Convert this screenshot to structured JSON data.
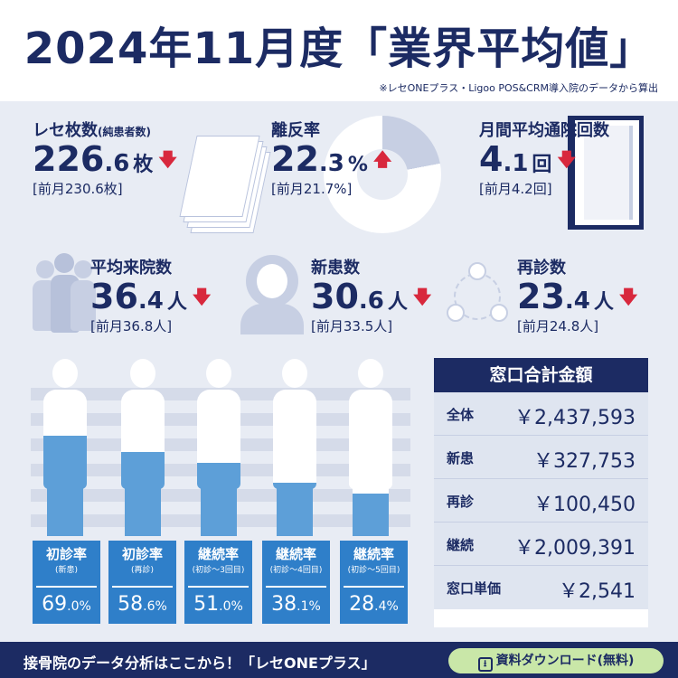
{
  "header": {
    "title_main": "2024年11月度",
    "title_bracket_open": "「",
    "title_emphasis": "業界平均値",
    "title_bracket_close": "」",
    "source_note": "※レセONEプラス・Ligoo POS&CRM導入院のデータから算出"
  },
  "kpis": {
    "receipts": {
      "label": "レセ枚数",
      "label_note": "(純患者数)",
      "int": "226",
      "dec": ".6",
      "unit": "枚",
      "trend": "down",
      "prev": "[前月230.6枚]"
    },
    "churn": {
      "label": "離反率",
      "int": "22",
      "dec": ".3",
      "unit": "%",
      "trend": "up",
      "prev": "[前月21.7%]"
    },
    "avg_visits": {
      "label": "月間平均通院回数",
      "int": "4",
      "dec": ".1",
      "unit": "回",
      "trend": "down",
      "prev": "[前月4.2回]"
    },
    "avg_patients": {
      "label": "平均来院数",
      "int": "36",
      "dec": ".4",
      "unit": "人",
      "trend": "down",
      "prev": "[前月36.8人]"
    },
    "new_patients": {
      "label": "新患数",
      "int": "30",
      "dec": ".6",
      "unit": "人",
      "trend": "down",
      "prev": "[前月33.5人]"
    },
    "revisits": {
      "label": "再診数",
      "int": "23",
      "dec": ".4",
      "unit": "人",
      "trend": "down",
      "prev": "[前月24.8人]"
    }
  },
  "arrows": {
    "down": "🡇",
    "up": "🡅"
  },
  "rates": [
    {
      "name": "初診率",
      "sub": "(新患)",
      "int": "69",
      "dec": ".0",
      "unit": "%",
      "value": 69.0
    },
    {
      "name": "初診率",
      "sub": "(再診)",
      "int": "58",
      "dec": ".6",
      "unit": "%",
      "value": 58.6
    },
    {
      "name": "継続率",
      "sub": "(初診～3回目)",
      "int": "51",
      "dec": ".0",
      "unit": "%",
      "value": 51.0
    },
    {
      "name": "継続率",
      "sub": "(初診～4回目)",
      "int": "38",
      "dec": ".1",
      "unit": "%",
      "value": 38.1
    },
    {
      "name": "継続率",
      "sub": "(初診～5回目)",
      "int": "28",
      "dec": ".4",
      "unit": "%",
      "value": 28.4
    }
  ],
  "money": {
    "title": "窓口合計金額",
    "rows": [
      {
        "label": "全体",
        "value": "￥2,437,593"
      },
      {
        "label": "新患",
        "value": "￥327,753"
      },
      {
        "label": "再診",
        "value": "￥100,450"
      },
      {
        "label": "継続",
        "value": "￥2,009,391"
      },
      {
        "label": "窓口単価",
        "value": "￥2,541"
      }
    ]
  },
  "footer": {
    "text": "接骨院のデータ分析はここから！「レセONEプラス」",
    "button_label": "資料ダウンロード(無料)",
    "button_icon": "download-icon"
  },
  "colors": {
    "navy": "#1c2b63",
    "accent_red": "#d8283d",
    "fill_blue": "#5d9fd8",
    "card_blue": "#2f7fc9",
    "panel": "#e8ecf4",
    "button_green": "#c9e7a8"
  }
}
